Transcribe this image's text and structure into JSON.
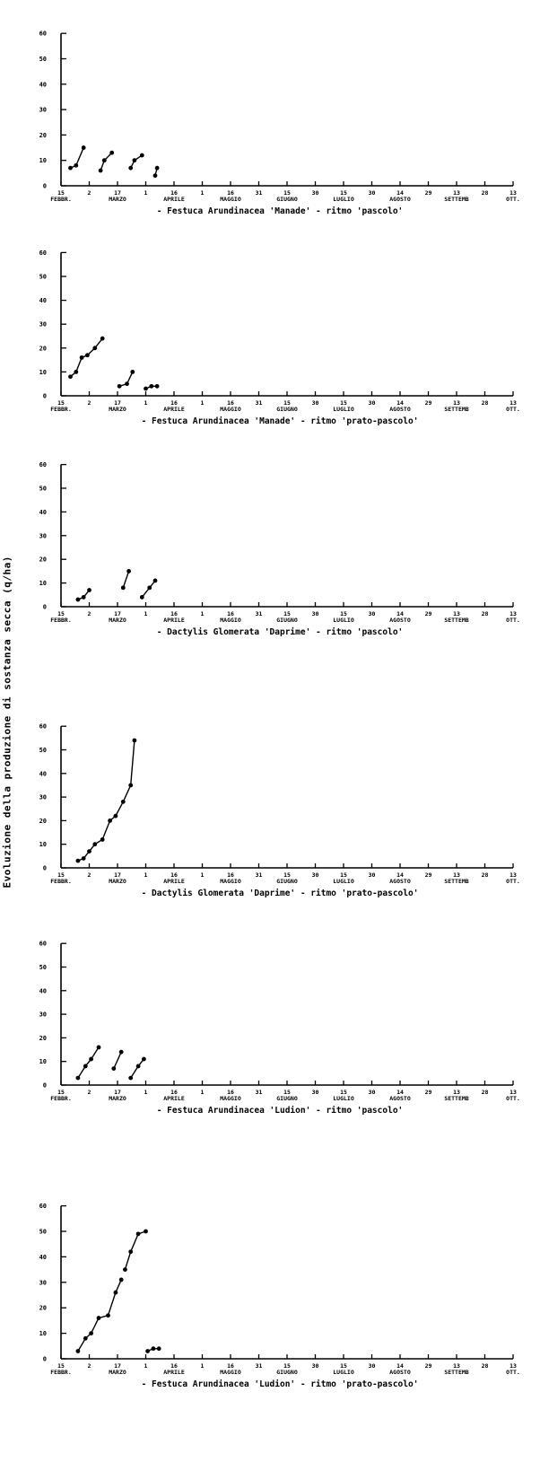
{
  "ylabel": "Evoluzione della produzione di sostanza secca (q/ha)",
  "x_ticks": [
    {
      "day": "15",
      "month": "FEBBR."
    },
    {
      "day": "2",
      "month": ""
    },
    {
      "day": "17",
      "month": "MARZO"
    },
    {
      "day": "1",
      "month": ""
    },
    {
      "day": "16",
      "month": "APRILE"
    },
    {
      "day": "1",
      "month": ""
    },
    {
      "day": "16",
      "month": "MAGGIO"
    },
    {
      "day": "31",
      "month": ""
    },
    {
      "day": "15",
      "month": "GIUGNO"
    },
    {
      "day": "30",
      "month": ""
    },
    {
      "day": "15",
      "month": "LUGLIO"
    },
    {
      "day": "30",
      "month": ""
    },
    {
      "day": "14",
      "month": "AGOSTO"
    },
    {
      "day": "29",
      "month": ""
    },
    {
      "day": "13",
      "month": "SETTEMB"
    },
    {
      "day": "28",
      "month": ""
    },
    {
      "day": "13",
      "month": "OTT."
    }
  ],
  "chart_data": [
    {
      "type": "line",
      "title": "- Festuca Arundinacea 'Manade' -     ritmo 'pascolo'",
      "ylim": [
        0,
        60
      ],
      "yticks": [
        0,
        10,
        20,
        30,
        40,
        50,
        60
      ],
      "x_unit": "days from 15 February (one tick = 15 days)",
      "series": [
        {
          "x": [
            5,
            8,
            12
          ],
          "y": [
            7,
            8,
            15
          ]
        },
        {
          "x": [
            21,
            23,
            27
          ],
          "y": [
            6,
            10,
            13
          ]
        },
        {
          "x": [
            37,
            39,
            43
          ],
          "y": [
            7,
            10,
            12
          ]
        },
        {
          "x": [
            50,
            51
          ],
          "y": [
            4,
            7
          ]
        }
      ]
    },
    {
      "type": "line",
      "title": "-  Festuca Arundinacea 'Manade'  -     ritmo 'prato-pascolo'",
      "ylim": [
        0,
        60
      ],
      "yticks": [
        0,
        10,
        20,
        30,
        40,
        50,
        60
      ],
      "x_unit": "days from 15 February (one tick = 15 days)",
      "series": [
        {
          "x": [
            5,
            8,
            11,
            14,
            18,
            22
          ],
          "y": [
            8,
            10,
            16,
            17,
            20,
            24
          ]
        },
        {
          "x": [
            31,
            35,
            38
          ],
          "y": [
            4,
            5,
            10
          ]
        },
        {
          "x": [
            45,
            48,
            51
          ],
          "y": [
            3,
            4,
            4
          ]
        }
      ]
    },
    {
      "type": "line",
      "title": "-  Dactylis Glomerata 'Daprime'  -     ritmo 'pascolo'",
      "ylim": [
        0,
        60
      ],
      "yticks": [
        0,
        10,
        20,
        30,
        40,
        50,
        60
      ],
      "x_unit": "days from 15 February (one tick = 15 days)",
      "series": [
        {
          "x": [
            9,
            12,
            15
          ],
          "y": [
            3,
            4,
            7
          ]
        },
        {
          "x": [
            33,
            36
          ],
          "y": [
            8,
            15
          ]
        },
        {
          "x": [
            43,
            47,
            50
          ],
          "y": [
            4,
            8,
            11
          ]
        }
      ]
    },
    {
      "type": "line",
      "title": "-  Dactylis Glomerata 'Daprime'  -     ritmo 'prato-pascolo'",
      "ylim": [
        0,
        60
      ],
      "yticks": [
        0,
        10,
        20,
        30,
        40,
        50,
        60
      ],
      "x_unit": "days from 15 February (one tick = 15 days)",
      "series": [
        {
          "x": [
            9,
            12,
            15,
            18,
            22,
            26,
            29,
            33,
            37,
            39
          ],
          "y": [
            3,
            4,
            7,
            10,
            12,
            20,
            22,
            28,
            35,
            54
          ]
        }
      ]
    },
    {
      "type": "line",
      "title": "- Festuca Arundinacea 'Ludion' -     ritmo 'pascolo'",
      "ylim": [
        0,
        60
      ],
      "yticks": [
        0,
        10,
        20,
        30,
        40,
        50,
        60
      ],
      "x_unit": "days from 15 February (one tick = 15 days)",
      "series": [
        {
          "x": [
            9,
            13,
            16,
            20
          ],
          "y": [
            3,
            8,
            11,
            16
          ]
        },
        {
          "x": [
            28,
            32
          ],
          "y": [
            7,
            14
          ]
        },
        {
          "x": [
            37,
            41,
            44
          ],
          "y": [
            3,
            8,
            11
          ]
        }
      ]
    },
    {
      "type": "line",
      "title": "- Festuca Arundinacea 'Ludion' -     ritmo 'prato-pascolo'",
      "ylim": [
        0,
        60
      ],
      "yticks": [
        0,
        10,
        20,
        30,
        40,
        50,
        60
      ],
      "x_unit": "days from 15 February (one tick = 15 days)",
      "series": [
        {
          "x": [
            9,
            13,
            16,
            20,
            25,
            29,
            32
          ],
          "y": [
            3,
            8,
            10,
            16,
            17,
            26,
            31
          ]
        },
        {
          "x": [
            34,
            37,
            41,
            45
          ],
          "y": [
            35,
            42,
            49,
            50
          ]
        },
        {
          "x": [
            46,
            49,
            52
          ],
          "y": [
            3,
            4,
            4
          ]
        }
      ]
    }
  ]
}
